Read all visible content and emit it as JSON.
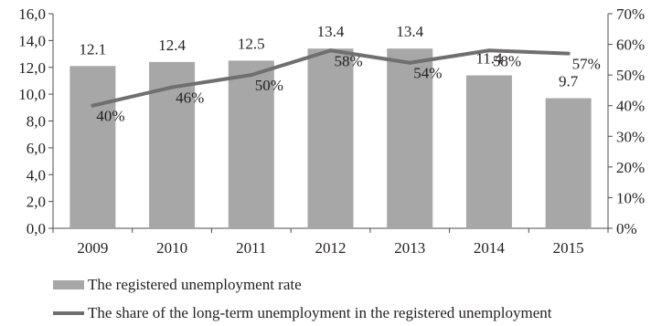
{
  "chart_data": {
    "type": "bar",
    "categories": [
      "2009",
      "2010",
      "2011",
      "2012",
      "2013",
      "2014",
      "2015"
    ],
    "series": [
      {
        "name": "The registered unemployment rate",
        "type": "bar",
        "axis": "left",
        "values": [
          12.1,
          12.4,
          12.5,
          13.4,
          13.4,
          11.4,
          9.7
        ],
        "labels": [
          "12.1",
          "12.4",
          "12.5",
          "13.4",
          "13.4",
          "11.4",
          "9.7"
        ]
      },
      {
        "name": "The share of the long-term unemployment in the registered unemployment",
        "type": "line",
        "axis": "right",
        "values": [
          40,
          46,
          50,
          58,
          54,
          58,
          57
        ],
        "labels": [
          "40%",
          "46%",
          "50%",
          "58%",
          "54%",
          "58%",
          "57%"
        ]
      }
    ],
    "left_axis": {
      "ylim": [
        0,
        16
      ],
      "ticks": [
        "0,0",
        "2,0",
        "4,0",
        "6,0",
        "8,0",
        "10,0",
        "12,0",
        "14,0",
        "16,0"
      ]
    },
    "right_axis": {
      "ylim": [
        0,
        70
      ],
      "ticks": [
        "0%",
        "10%",
        "20%",
        "30%",
        "40%",
        "50%",
        "60%",
        "70%"
      ]
    },
    "grid": false,
    "legend_position": "bottom",
    "colors": {
      "bar": "#a7a7a7",
      "line": "#6f6f6f",
      "axis": "#4d4d4d"
    }
  }
}
